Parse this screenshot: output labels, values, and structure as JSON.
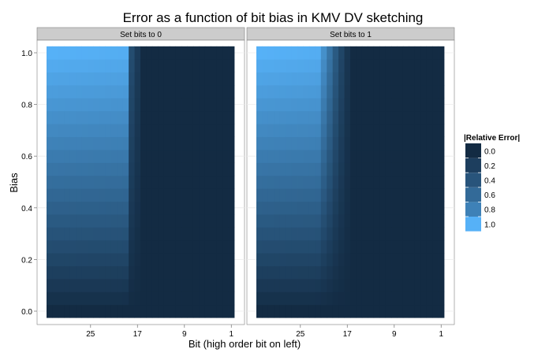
{
  "chart_data": {
    "type": "heatmap",
    "title": "Error as a function of bit bias in KMV DV sketching",
    "xlabel": "Bit (high order bit on left)",
    "ylabel": "Bias",
    "x_ticks": [
      "25",
      "17",
      "9",
      "1"
    ],
    "y_ticks": [
      "0.0",
      "0.2",
      "0.4",
      "0.6",
      "0.8",
      "1.0"
    ],
    "x_domain": {
      "high_bit": 32,
      "low_bit": 1
    },
    "y_domain": [
      0.0,
      1.0
    ],
    "legend": {
      "title": "|Relative Error|",
      "position": "right",
      "items": [
        "0.0",
        "0.2",
        "0.4",
        "0.6",
        "0.8",
        "1.0"
      ],
      "colors": [
        "#132b43",
        "#1d3e5e",
        "#28547b",
        "#336a98",
        "#3e81b7",
        "#56b1f7"
      ]
    },
    "colors": {
      "low": "#132b43",
      "high": "#56b1f7",
      "panel_bg": "#ffffff",
      "grid": "#ebebeb",
      "strip": "#cccccc"
    },
    "panels": [
      {
        "strip": "Set bits to 0",
        "description": "For bits 32..19 error rises roughly linearly with bias up to ~1.0 at bias=1; bits 19..18 transitional; bits 17..1 near 0",
        "edge_bit": 19,
        "transition": [
          {
            "bit": 18,
            "max_error": 0.25
          },
          {
            "bit": 17,
            "max_error": 0.12
          }
        ]
      },
      {
        "strip": "Set bits to 1",
        "description": "For bits 32..22 error rises with bias up to ~1.0 at bias=1; bits 21..17 transitional; bits 16..1 near 0",
        "edge_bit": 22,
        "transition": [
          {
            "bit": 21,
            "max_error": 0.75
          },
          {
            "bit": 20,
            "max_error": 0.55
          },
          {
            "bit": 19,
            "max_error": 0.35
          },
          {
            "bit": 18,
            "max_error": 0.2
          },
          {
            "bit": 17,
            "max_error": 0.08
          }
        ]
      }
    ]
  }
}
